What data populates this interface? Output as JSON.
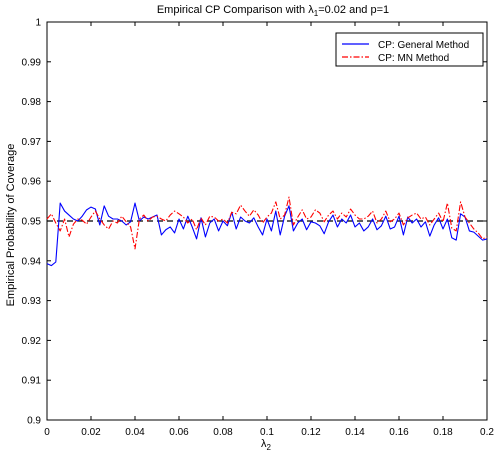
{
  "chart_data": {
    "type": "line",
    "title_parts": [
      "Empirical CP Comparison with ",
      "λ",
      "1",
      "=0.02 and p=1"
    ],
    "xlabel_parts": [
      "λ",
      "2"
    ],
    "ylabel": "Empirical Probability of Coverage",
    "xlim": [
      0,
      0.2
    ],
    "ylim": [
      0.9,
      1.0
    ],
    "x_ticks": [
      "0",
      "0.02",
      "0.04",
      "0.06",
      "0.08",
      "0.1",
      "0.12",
      "0.14",
      "0.16",
      "0.18",
      "0.2"
    ],
    "y_ticks": [
      "0.9",
      "0.91",
      "0.92",
      "0.93",
      "0.94",
      "0.95",
      "0.96",
      "0.97",
      "0.98",
      "0.99",
      "1"
    ],
    "grid": false,
    "legend_position": "top-right",
    "reference_line": {
      "y": 0.95,
      "color": "#000000",
      "style": "dashed"
    },
    "x": [
      0.0,
      0.002,
      0.004,
      0.006,
      0.008,
      0.01,
      0.012,
      0.014,
      0.016,
      0.018,
      0.02,
      0.022,
      0.024,
      0.026,
      0.028,
      0.03,
      0.032,
      0.034,
      0.036,
      0.038,
      0.04,
      0.042,
      0.044,
      0.046,
      0.048,
      0.05,
      0.052,
      0.054,
      0.056,
      0.058,
      0.06,
      0.062,
      0.064,
      0.066,
      0.068,
      0.07,
      0.072,
      0.074,
      0.076,
      0.078,
      0.08,
      0.082,
      0.084,
      0.086,
      0.088,
      0.09,
      0.092,
      0.094,
      0.096,
      0.098,
      0.1,
      0.102,
      0.104,
      0.106,
      0.108,
      0.11,
      0.112,
      0.114,
      0.116,
      0.118,
      0.12,
      0.122,
      0.124,
      0.126,
      0.128,
      0.13,
      0.132,
      0.134,
      0.136,
      0.138,
      0.14,
      0.142,
      0.144,
      0.146,
      0.148,
      0.15,
      0.152,
      0.154,
      0.156,
      0.158,
      0.16,
      0.162,
      0.164,
      0.166,
      0.168,
      0.17,
      0.172,
      0.174,
      0.176,
      0.178,
      0.18,
      0.182,
      0.184,
      0.186,
      0.188,
      0.19,
      0.192,
      0.194,
      0.196,
      0.198,
      0.2
    ],
    "series": [
      {
        "name": "CP: General Method",
        "color": "#0000ff",
        "style": "solid",
        "values": [
          0.9393,
          0.9388,
          0.9397,
          0.9545,
          0.9525,
          0.9515,
          0.9505,
          0.95,
          0.9512,
          0.9528,
          0.9535,
          0.953,
          0.949,
          0.9538,
          0.9512,
          0.9505,
          0.9505,
          0.95,
          0.949,
          0.9498,
          0.9545,
          0.95,
          0.951,
          0.9505,
          0.951,
          0.9515,
          0.9465,
          0.9478,
          0.9485,
          0.947,
          0.9505,
          0.948,
          0.9512,
          0.9485,
          0.9455,
          0.9508,
          0.946,
          0.9495,
          0.9505,
          0.9475,
          0.95,
          0.9488,
          0.9522,
          0.948,
          0.951,
          0.95,
          0.9495,
          0.9508,
          0.9485,
          0.9465,
          0.9505,
          0.9475,
          0.9525,
          0.9465,
          0.9512,
          0.9538,
          0.9475,
          0.9495,
          0.9505,
          0.9478,
          0.9498,
          0.9495,
          0.9488,
          0.9468,
          0.9498,
          0.9515,
          0.9485,
          0.9505,
          0.9495,
          0.9515,
          0.9485,
          0.9495,
          0.9475,
          0.9485,
          0.9505,
          0.9478,
          0.9488,
          0.9512,
          0.948,
          0.9485,
          0.9512,
          0.9465,
          0.951,
          0.9495,
          0.9505,
          0.9485,
          0.9498,
          0.9462,
          0.949,
          0.9508,
          0.948,
          0.9505,
          0.9458,
          0.9452,
          0.9518,
          0.951,
          0.9475,
          0.9472,
          0.9462,
          0.9452,
          0.9455
        ]
      },
      {
        "name": "CP: MN Method",
        "color": "#ff0000",
        "style": "dashdot",
        "values": [
          0.9505,
          0.9518,
          0.9495,
          0.9475,
          0.9505,
          0.946,
          0.9492,
          0.9505,
          0.9502,
          0.9492,
          0.951,
          0.9525,
          0.9505,
          0.949,
          0.948,
          0.95,
          0.9495,
          0.9512,
          0.9498,
          0.9485,
          0.943,
          0.9505,
          0.9515,
          0.95,
          0.951,
          0.9512,
          0.9505,
          0.95,
          0.9515,
          0.9525,
          0.9518,
          0.951,
          0.9495,
          0.9505,
          0.9478,
          0.9508,
          0.949,
          0.9512,
          0.951,
          0.95,
          0.9505,
          0.9495,
          0.9522,
          0.9518,
          0.954,
          0.9525,
          0.9512,
          0.9528,
          0.9515,
          0.9495,
          0.951,
          0.952,
          0.9548,
          0.9505,
          0.9515,
          0.956,
          0.949,
          0.951,
          0.9528,
          0.9505,
          0.951,
          0.9528,
          0.952,
          0.9498,
          0.9515,
          0.9525,
          0.9505,
          0.952,
          0.951,
          0.953,
          0.9515,
          0.9505,
          0.9505,
          0.9512,
          0.9525,
          0.9495,
          0.9505,
          0.9525,
          0.9498,
          0.9505,
          0.952,
          0.949,
          0.9508,
          0.9515,
          0.952,
          0.9505,
          0.951,
          0.949,
          0.9505,
          0.952,
          0.9498,
          0.9545,
          0.9482,
          0.9475,
          0.9548,
          0.951,
          0.9495,
          0.948,
          0.947,
          0.9455,
          0.946
        ]
      }
    ]
  }
}
